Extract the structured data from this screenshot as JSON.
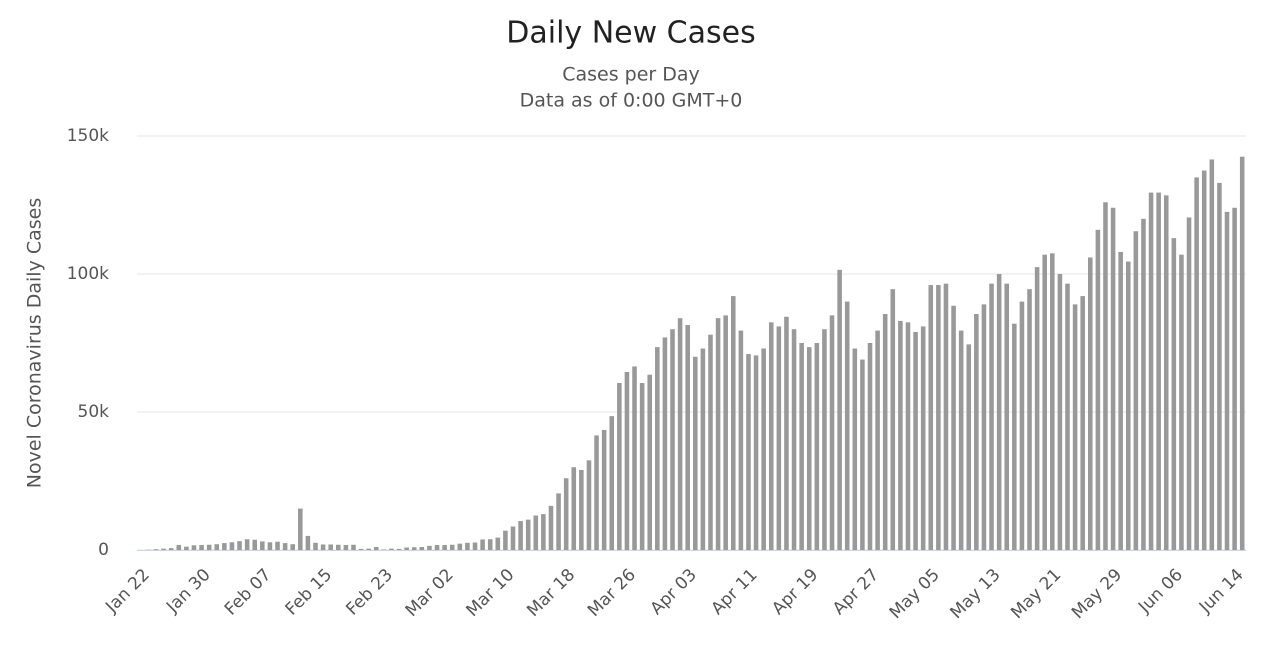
{
  "chart_data": {
    "type": "bar",
    "title": "Daily New Cases",
    "subtitle": [
      "Cases per Day",
      "Data as of 0:00 GMT+0"
    ],
    "y_axis_label": "Novel Coronavirus Daily Cases",
    "color": "#999999",
    "grid": true,
    "ylim": [
      0,
      150000
    ],
    "yticks": [
      0,
      {
        "value": 50000,
        "label": "50k"
      },
      {
        "value": 100000,
        "label": "100k"
      },
      {
        "value": 150000,
        "label": "150k"
      }
    ],
    "categories": [
      "Jan 22",
      null,
      null,
      null,
      null,
      null,
      null,
      null,
      "Jan 30",
      null,
      null,
      null,
      null,
      null,
      null,
      null,
      "Feb 07",
      null,
      null,
      null,
      null,
      null,
      null,
      null,
      "Feb 15",
      null,
      null,
      null,
      null,
      null,
      null,
      null,
      "Feb 23",
      null,
      null,
      null,
      null,
      null,
      null,
      null,
      "Mar 02",
      null,
      null,
      null,
      null,
      null,
      null,
      null,
      "Mar 10",
      null,
      null,
      null,
      null,
      null,
      null,
      null,
      "Mar 18",
      null,
      null,
      null,
      null,
      null,
      null,
      null,
      "Mar 26",
      null,
      null,
      null,
      null,
      null,
      null,
      null,
      "Apr 03",
      null,
      null,
      null,
      null,
      null,
      null,
      null,
      "Apr 11",
      null,
      null,
      null,
      null,
      null,
      null,
      null,
      "Apr 19",
      null,
      null,
      null,
      null,
      null,
      null,
      null,
      "Apr 27",
      null,
      null,
      null,
      null,
      null,
      null,
      null,
      "May 05",
      null,
      null,
      null,
      null,
      null,
      null,
      null,
      "May 13",
      null,
      null,
      null,
      null,
      null,
      null,
      null,
      "May 21",
      null,
      null,
      null,
      null,
      null,
      null,
      null,
      "May 29",
      null,
      null,
      null,
      null,
      null,
      null,
      null,
      "Jun 06",
      null,
      null,
      null,
      null,
      null,
      null,
      null,
      "Jun 14",
      null
    ],
    "values": [
      0,
      100,
      300,
      500,
      700,
      1800,
      1200,
      1700,
      1800,
      1900,
      2100,
      2500,
      2800,
      3200,
      3900,
      3700,
      3100,
      2800,
      3000,
      2500,
      2100,
      15000,
      5100,
      2600,
      2000,
      2000,
      1900,
      1800,
      1900,
      400,
      500,
      1100,
      200,
      500,
      400,
      900,
      1000,
      1100,
      1500,
      1800,
      1800,
      1900,
      2300,
      2600,
      2700,
      3800,
      3900,
      4500,
      7000,
      8500,
      10500,
      11000,
      12500,
      13000,
      16000,
      20500,
      26000,
      30000,
      29000,
      32500,
      41500,
      43500,
      48500,
      60500,
      64500,
      66500,
      60500,
      63500,
      73500,
      77000,
      80000,
      84000,
      81500,
      70000,
      73000,
      78000,
      84000,
      85000,
      92000,
      79500,
      71000,
      70500,
      73000,
      82500,
      81000,
      84500,
      80000,
      75000,
      73500,
      75000,
      80000,
      85000,
      101500,
      90000,
      73000,
      69000,
      75000,
      79500,
      85500,
      94500,
      83000,
      82500,
      79000,
      81000,
      96000,
      96000,
      96500,
      88500,
      79500,
      74500,
      85500,
      89000,
      96500,
      100000,
      96500,
      82000,
      90000,
      94500,
      102500,
      107000,
      107500,
      100000,
      96500,
      89000,
      92000,
      106000,
      116000,
      126000,
      124000,
      108000,
      104500,
      115500,
      120000,
      129500,
      129500,
      128500,
      113000,
      107000,
      120500,
      135000,
      137500,
      141500,
      133000,
      122500,
      124000,
      142500
    ]
  }
}
